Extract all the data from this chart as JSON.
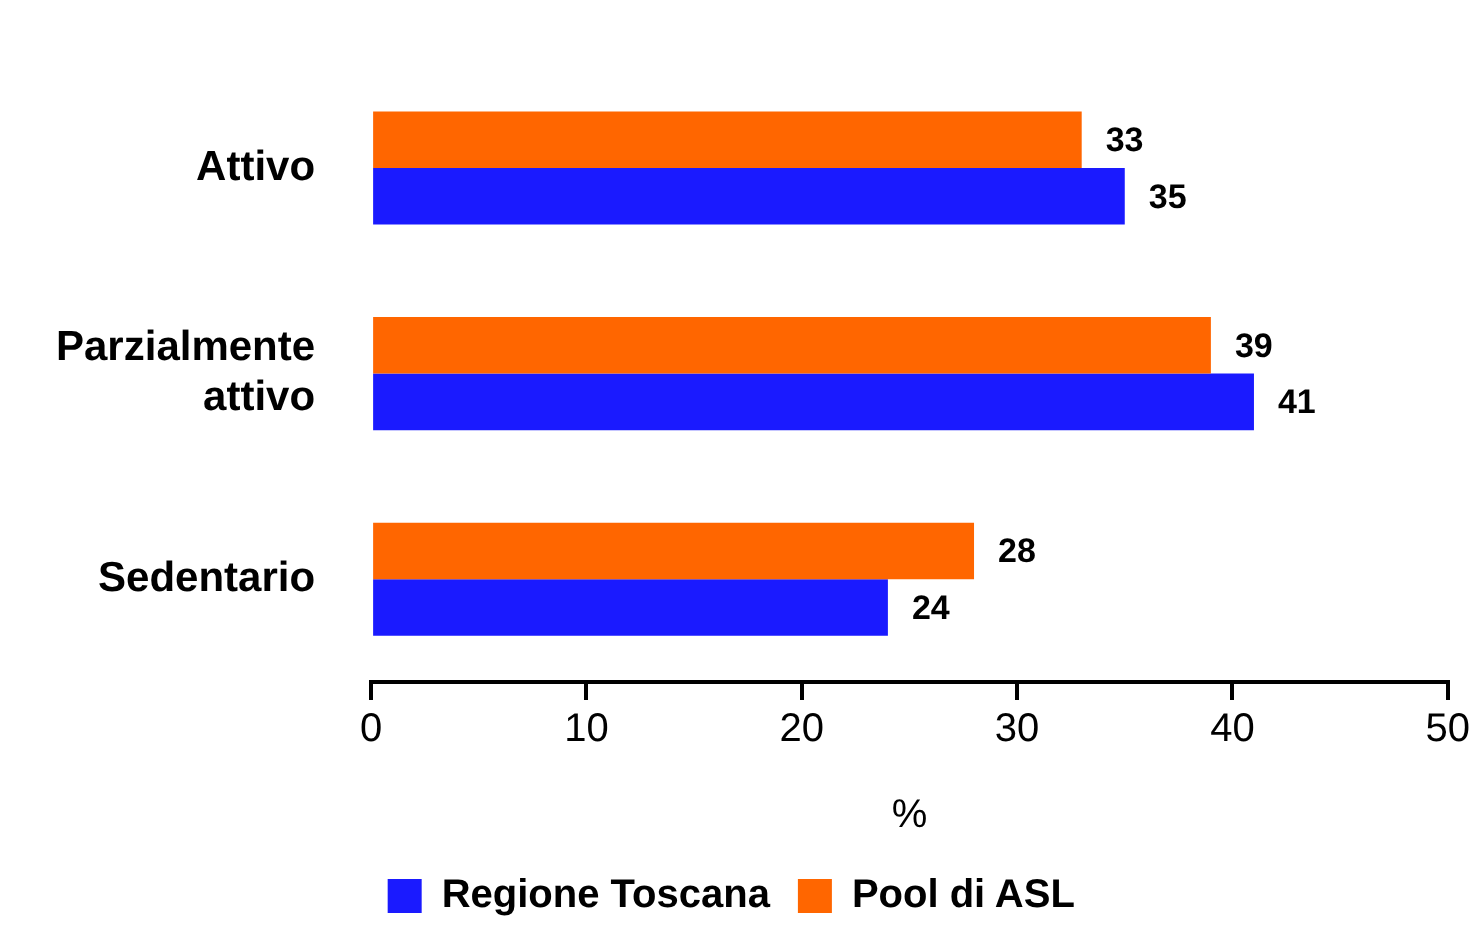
{
  "chart_data": {
    "type": "bar",
    "orientation": "horizontal",
    "categories": [
      "Attivo",
      "Parzialmente attivo",
      "Sedentario"
    ],
    "series": [
      {
        "name": "Regione Toscana",
        "color": "#1a1aff",
        "values": [
          35,
          41,
          24
        ]
      },
      {
        "name": "Pool di ASL",
        "color": "#ff6600",
        "values": [
          33,
          39,
          28
        ]
      }
    ],
    "xlabel": "%",
    "xlim": [
      0,
      50
    ],
    "xticks": [
      0,
      10,
      20,
      30,
      40,
      50
    ],
    "data_labels": true,
    "grid": false,
    "legend": "bottom"
  }
}
